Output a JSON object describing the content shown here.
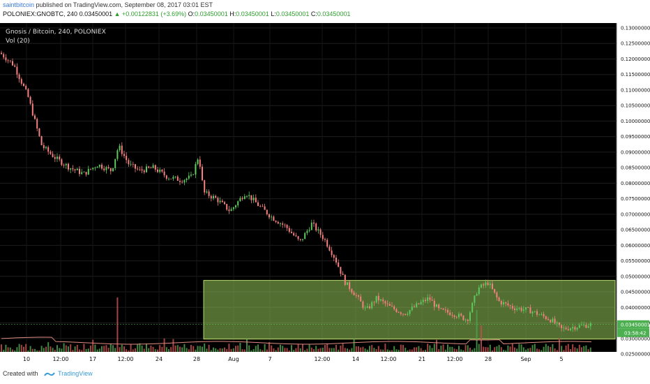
{
  "header": {
    "user": "saintbitcoin",
    "published_text": "published on TradingView.com, September 08, 2017 03:01 EST",
    "symbol_line": "POLONIEX:GNOBTC, 240",
    "last": "0.03450001",
    "change": "▲ +0.00122831 (+3.69%)",
    "ohlc": {
      "o_label": "O:",
      "o": "0.03450001",
      "h_label": "H:",
      "h": "0.03450001",
      "l_label": "L:",
      "l": "0.03450001",
      "c_label": "C:",
      "c": "0.03450001"
    }
  },
  "chart_data": {
    "type": "candlestick",
    "title": "Gnosis / Bitcoin, 240, POLONIEX",
    "subtitle": "Vol (20)",
    "y_ticks": [
      "0.13000000",
      "0.12500000",
      "0.12000000",
      "0.11500000",
      "0.11000000",
      "0.10500000",
      "0.10000000",
      "0.09500000",
      "0.09000000",
      "0.08500000",
      "0.08000000",
      "0.07500000",
      "0.07000000",
      "0.06500000",
      "0.06000000",
      "0.05500000",
      "0.05000000",
      "0.04500000",
      "0.04000000",
      "0.03500000",
      "0.03000000",
      "0.02500000"
    ],
    "ylim": [
      0.025,
      0.13
    ],
    "x_ticks": [
      "10",
      "12:00",
      "17",
      "12:00",
      "24",
      "28",
      "Aug",
      "7",
      "12:00",
      "14",
      "12:00",
      "21",
      "12:00",
      "28",
      "Sep",
      "5"
    ],
    "price_path": [
      [
        0,
        0.122
      ],
      [
        20,
        0.118
      ],
      [
        40,
        0.108
      ],
      [
        60,
        0.092
      ],
      [
        80,
        0.088
      ],
      [
        100,
        0.085
      ],
      [
        120,
        0.083
      ],
      [
        140,
        0.086
      ],
      [
        160,
        0.084
      ],
      [
        170,
        0.092
      ],
      [
        185,
        0.086
      ],
      [
        200,
        0.084
      ],
      [
        220,
        0.085
      ],
      [
        240,
        0.082
      ],
      [
        260,
        0.081
      ],
      [
        275,
        0.082
      ],
      [
        285,
        0.089
      ],
      [
        292,
        0.077
      ],
      [
        310,
        0.075
      ],
      [
        330,
        0.071
      ],
      [
        352,
        0.077
      ],
      [
        370,
        0.073
      ],
      [
        390,
        0.069
      ],
      [
        410,
        0.066
      ],
      [
        430,
        0.061
      ],
      [
        447,
        0.067
      ],
      [
        465,
        0.062
      ],
      [
        480,
        0.056
      ],
      [
        495,
        0.048
      ],
      [
        510,
        0.044
      ],
      [
        525,
        0.039
      ],
      [
        540,
        0.043
      ],
      [
        560,
        0.04
      ],
      [
        580,
        0.038
      ],
      [
        600,
        0.041
      ],
      [
        615,
        0.043
      ],
      [
        630,
        0.039
      ],
      [
        650,
        0.038
      ],
      [
        670,
        0.036
      ],
      [
        685,
        0.046
      ],
      [
        700,
        0.048
      ],
      [
        715,
        0.042
      ],
      [
        735,
        0.04
      ],
      [
        760,
        0.039
      ],
      [
        790,
        0.036
      ],
      [
        805,
        0.033
      ],
      [
        830,
        0.034
      ],
      [
        848,
        0.0345
      ]
    ],
    "current_price": "0.03450001",
    "countdown": "03:58:42",
    "zone": {
      "label": "",
      "price_top": 0.0487,
      "price_bottom": 0.0298
    },
    "grid": true
  },
  "footer": {
    "created_with": "Created with",
    "brand": "TradingView"
  }
}
